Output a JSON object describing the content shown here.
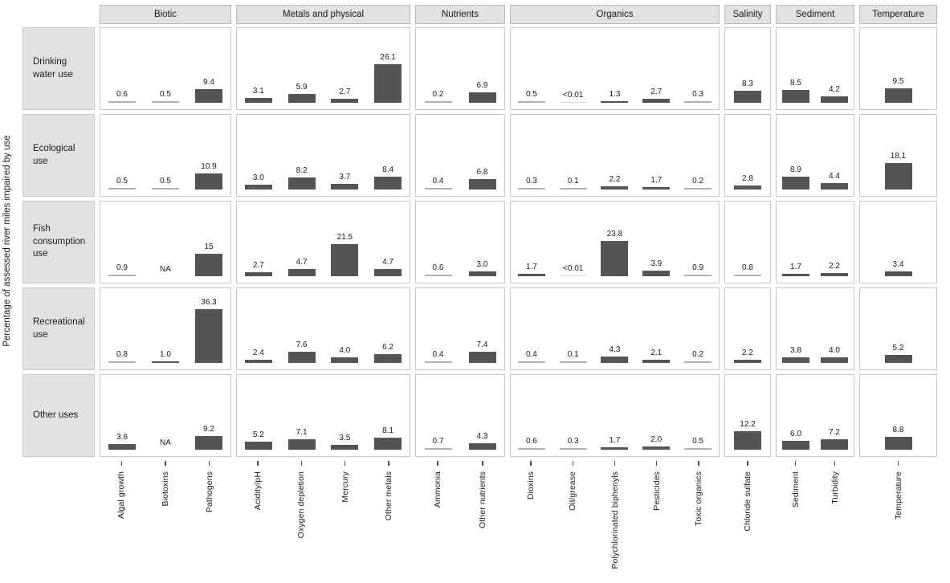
{
  "chart_data": {
    "type": "bar",
    "title": "",
    "xlabel": "",
    "ylabel": "Percentage of assessed river miles impaired by use",
    "ylim": [
      0,
      40
    ],
    "grid": false,
    "legend": "none",
    "facet_layout": "rows are water uses, columns are impairment cause groups",
    "bar_color": "#545454",
    "small_bar_color": "#b0b0b0",
    "trace_bar_color": "#d6d6d6",
    "header_bg": "#e2e2e2",
    "na_label": "NA",
    "column_groups": [
      {
        "label": "Biotic",
        "categories": [
          "Algal growth",
          "Biotoxins",
          "Pathogens"
        ]
      },
      {
        "label": "Metals and physical",
        "categories": [
          "Acidity/pH",
          "Oxygen depletion",
          "Mercury",
          "Other metals"
        ]
      },
      {
        "label": "Nutrients",
        "categories": [
          "Ammonia",
          "Other nutrients"
        ]
      },
      {
        "label": "Organics",
        "categories": [
          "Dioxins",
          "Oil/grease",
          "Polychlorinated biphenyls",
          "Pesticides",
          "Toxic organics"
        ]
      },
      {
        "label": "Salinity",
        "categories": [
          "Chloride sulfate"
        ]
      },
      {
        "label": "Sediment",
        "categories": [
          "Sediment",
          "Turbidity"
        ]
      },
      {
        "label": "Temperature",
        "categories": [
          "Temperature"
        ]
      }
    ],
    "rows": [
      {
        "label": "Drinking water use",
        "values": [
          [
            "0.6",
            "0.5",
            "9.4"
          ],
          [
            "3.1",
            "5.9",
            "2.7",
            "26.1"
          ],
          [
            "0.2",
            "6.9"
          ],
          [
            "0.5",
            "<0.01",
            "1.3",
            "2.7",
            "0.3"
          ],
          [
            "8.3"
          ],
          [
            "8.5",
            "4.2"
          ],
          [
            "9.5"
          ]
        ]
      },
      {
        "label": "Ecological use",
        "values": [
          [
            "0.5",
            "0.5",
            "10.9"
          ],
          [
            "3.0",
            "8.2",
            "3.7",
            "8.4"
          ],
          [
            "0.4",
            "6.8"
          ],
          [
            "0.3",
            "0.1",
            "2.2",
            "1.7",
            "0.2"
          ],
          [
            "2.8"
          ],
          [
            "8.9",
            "4.4"
          ],
          [
            "18.1"
          ]
        ]
      },
      {
        "label": "Fish consumption use",
        "values": [
          [
            "0.9",
            "NA",
            "15"
          ],
          [
            "2.7",
            "4.7",
            "21.5",
            "4.7"
          ],
          [
            "0.6",
            "3.0"
          ],
          [
            "1.7",
            "<0.01",
            "23.8",
            "3.9",
            "0.9"
          ],
          [
            "0.8"
          ],
          [
            "1.7",
            "2.2"
          ],
          [
            "3.4"
          ]
        ]
      },
      {
        "label": "Recreational use",
        "values": [
          [
            "0.8",
            "1.0",
            "36.3"
          ],
          [
            "2.4",
            "7.6",
            "4.0",
            "6.2"
          ],
          [
            "0.4",
            "7.4"
          ],
          [
            "0.4",
            "0.1",
            "4.3",
            "2.1",
            "0.2"
          ],
          [
            "2.2"
          ],
          [
            "3.8",
            "4.0"
          ],
          [
            "5.2"
          ]
        ]
      },
      {
        "label": "Other uses",
        "values": [
          [
            "3.6",
            "NA",
            "9.2"
          ],
          [
            "5.2",
            "7.1",
            "3.5",
            "8.1"
          ],
          [
            "0.7",
            "4.3"
          ],
          [
            "0.6",
            "0.3",
            "1.7",
            "2.0",
            "0.5"
          ],
          [
            "12.2"
          ],
          [
            "6.0",
            "7.2"
          ],
          [
            "8.8"
          ]
        ]
      }
    ]
  }
}
